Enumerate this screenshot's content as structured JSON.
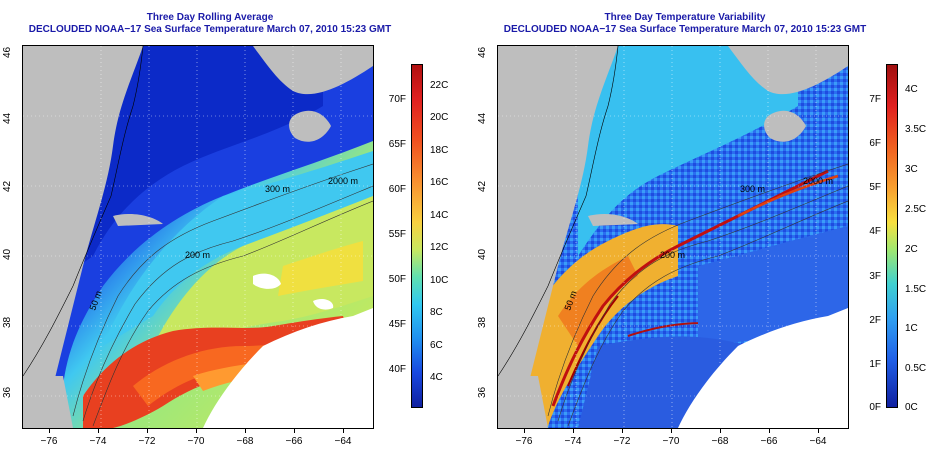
{
  "left_panel": {
    "title_line1": "Three Day Rolling Average",
    "title_line2": "DECLOUDED NOAA−17 Sea Surface Temperature March 07, 2010 15:23 GMT",
    "colorbar_celsius": [
      "22C",
      "20C",
      "18C",
      "16C",
      "14C",
      "12C",
      "10C",
      "8C",
      "6C",
      "4C"
    ],
    "colorbar_fahrenheit": [
      "70F",
      "65F",
      "60F",
      "55F",
      "50F",
      "45F",
      "40F"
    ],
    "contour_labels": [
      "2000 m",
      "300 m",
      "200 m",
      "50 m"
    ]
  },
  "right_panel": {
    "title_line1": "Three Day Temperature Variability",
    "title_line2": "DECLOUDED NOAA−17 Sea Surface Temperature March 07, 2010 15:23 GMT",
    "colorbar_celsius": [
      "4C",
      "3.5C",
      "3C",
      "2.5C",
      "2C",
      "1.5C",
      "1C",
      "0.5C",
      "0C"
    ],
    "colorbar_fahrenheit": [
      "7F",
      "6F",
      "5F",
      "4F",
      "3F",
      "2F",
      "1F",
      "0F"
    ],
    "contour_labels": [
      "2000 m",
      "300 m",
      "200 m",
      "50 m"
    ]
  },
  "axes": {
    "x_ticks": [
      "−76",
      "−74",
      "−72",
      "−70",
      "−68",
      "−66",
      "−64"
    ],
    "y_ticks": [
      "46",
      "44",
      "42",
      "40",
      "38",
      "36"
    ]
  },
  "colors": {
    "title": "#1a1aa8",
    "land": "#bebebe",
    "nodata": "#ffffff"
  }
}
